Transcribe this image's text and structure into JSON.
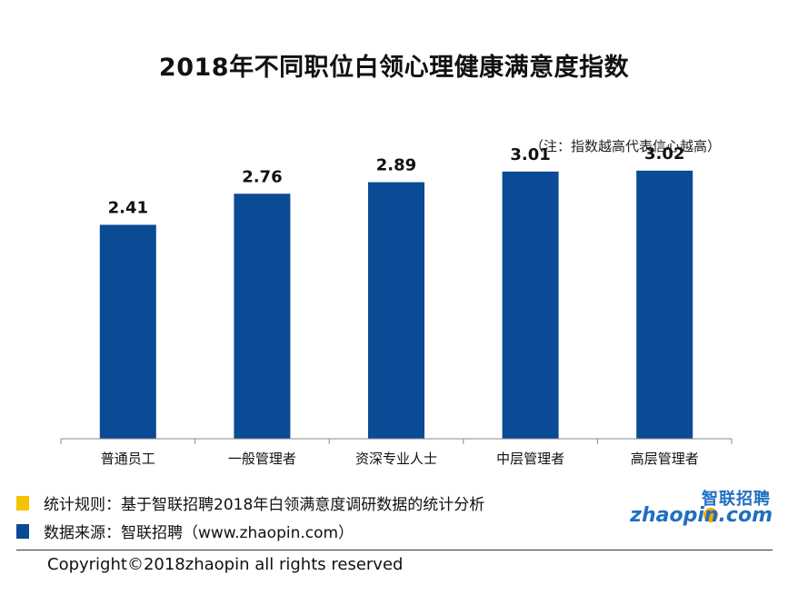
{
  "chart_data": {
    "type": "bar",
    "title": "2018年不同职位白领心理健康满意度指数",
    "note": "（注：指数越高代表信心越高）",
    "categories": [
      "普通员工",
      "一般管理者",
      "资深专业人士",
      "中层管理者",
      "高层管理者"
    ],
    "values": [
      2.41,
      2.76,
      2.89,
      3.01,
      3.02
    ],
    "value_labels": [
      "2.41",
      "2.76",
      "2.89",
      "3.01",
      "3.02"
    ],
    "ylim": [
      0,
      3.96
    ],
    "grid": false,
    "bar_color": "#0b4a94"
  },
  "legend": [
    {
      "text": "统计规则：基于智联招聘2018年白领满意度调研数据的统计分析",
      "color": "#f5c400"
    },
    {
      "text": "数据来源：智联招聘（www.zhaopin.com）",
      "color": "#0b4a94"
    }
  ],
  "logo": {
    "cn": "智联招聘",
    "en": "zhaopin.com"
  },
  "copyright": "Copyright©2018zhaopin all rights reserved"
}
